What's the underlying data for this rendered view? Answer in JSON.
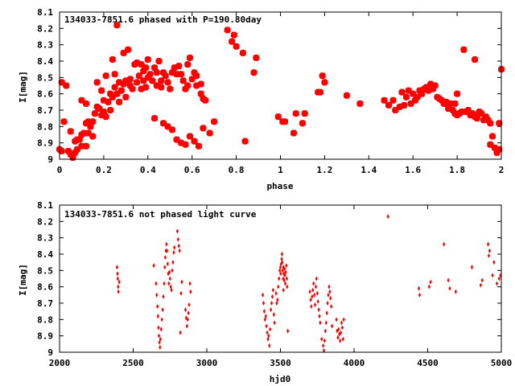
{
  "colors": {
    "points": "#ff0000",
    "axes": "#000000",
    "background": "#ffffff"
  },
  "chart_data": [
    {
      "type": "scatter",
      "title": "134033-7851.6 phased with P=190.80day",
      "xlabel": "phase",
      "ylabel": "I[mag]",
      "xlim": [
        0,
        2
      ],
      "ylim": [
        9,
        8.1
      ],
      "y_reversed": true,
      "xticks": [
        0,
        0.2,
        0.4,
        0.6,
        0.8,
        1,
        1.2,
        1.4,
        1.6,
        1.8,
        2
      ],
      "xtick_labels": [
        "0",
        "0.2",
        "0.4",
        "0.6",
        "0.8",
        "1",
        "1.2",
        "1.4",
        "1.6",
        "1.8",
        "2"
      ],
      "yticks": [
        8.1,
        8.2,
        8.3,
        8.4,
        8.5,
        8.6,
        8.7,
        8.8,
        8.9,
        9
      ],
      "ytick_labels": [
        "8.1",
        "8.2",
        "8.3",
        "8.4",
        "8.5",
        "8.6",
        "8.7",
        "8.8",
        "8.9",
        "9"
      ],
      "marker": "filled-square-large",
      "points": [
        [
          0.0,
          8.94
        ],
        [
          0.01,
          8.95
        ],
        [
          0.01,
          8.53
        ],
        [
          0.02,
          8.77
        ],
        [
          0.03,
          8.55
        ],
        [
          0.04,
          8.95
        ],
        [
          0.05,
          8.83
        ],
        [
          0.05,
          8.97
        ],
        [
          0.06,
          8.99
        ],
        [
          0.07,
          8.89
        ],
        [
          0.07,
          8.96
        ],
        [
          0.08,
          8.88
        ],
        [
          0.08,
          8.94
        ],
        [
          0.09,
          8.88
        ],
        [
          0.1,
          8.92
        ],
        [
          0.1,
          8.85
        ],
        [
          0.1,
          8.64
        ],
        [
          0.11,
          8.84
        ],
        [
          0.12,
          8.92
        ],
        [
          0.12,
          8.78
        ],
        [
          0.12,
          8.66
        ],
        [
          0.13,
          8.84
        ],
        [
          0.13,
          8.77
        ],
        [
          0.14,
          8.8
        ],
        [
          0.15,
          8.86
        ],
        [
          0.15,
          8.77
        ],
        [
          0.16,
          8.72
        ],
        [
          0.17,
          8.68
        ],
        [
          0.17,
          8.53
        ],
        [
          0.18,
          8.69
        ],
        [
          0.19,
          8.73
        ],
        [
          0.19,
          8.58
        ],
        [
          0.2,
          8.64
        ],
        [
          0.2,
          8.71
        ],
        [
          0.21,
          8.49
        ],
        [
          0.21,
          8.74
        ],
        [
          0.22,
          8.65
        ],
        [
          0.23,
          8.6
        ],
        [
          0.23,
          8.7
        ],
        [
          0.24,
          8.39
        ],
        [
          0.24,
          8.62
        ],
        [
          0.25,
          8.56
        ],
        [
          0.25,
          8.48
        ],
        [
          0.26,
          8.18
        ],
        [
          0.26,
          8.6
        ],
        [
          0.27,
          8.53
        ],
        [
          0.27,
          8.65
        ],
        [
          0.28,
          8.58
        ],
        [
          0.29,
          8.35
        ],
        [
          0.29,
          8.54
        ],
        [
          0.3,
          8.52
        ],
        [
          0.3,
          8.62
        ],
        [
          0.31,
          8.33
        ],
        [
          0.32,
          8.51
        ],
        [
          0.32,
          8.55
        ],
        [
          0.33,
          8.57
        ],
        [
          0.34,
          8.42
        ],
        [
          0.35,
          8.53
        ],
        [
          0.35,
          8.41
        ],
        [
          0.36,
          8.49
        ],
        [
          0.37,
          8.57
        ],
        [
          0.37,
          8.42
        ],
        [
          0.38,
          8.46
        ],
        [
          0.38,
          8.52
        ],
        [
          0.39,
          8.44
        ],
        [
          0.39,
          8.56
        ],
        [
          0.4,
          8.5
        ],
        [
          0.4,
          8.39
        ],
        [
          0.41,
          8.48
        ],
        [
          0.42,
          8.52
        ],
        [
          0.43,
          8.44
        ],
        [
          0.43,
          8.75
        ],
        [
          0.44,
          8.47
        ],
        [
          0.44,
          8.55
        ],
        [
          0.45,
          8.4
        ],
        [
          0.46,
          8.52
        ],
        [
          0.46,
          8.56
        ],
        [
          0.47,
          8.78
        ],
        [
          0.47,
          8.47
        ],
        [
          0.48,
          8.49
        ],
        [
          0.49,
          8.53
        ],
        [
          0.49,
          8.8
        ],
        [
          0.5,
          8.57
        ],
        [
          0.51,
          8.47
        ],
        [
          0.51,
          8.82
        ],
        [
          0.52,
          8.44
        ],
        [
          0.53,
          8.48
        ],
        [
          0.53,
          8.88
        ],
        [
          0.54,
          8.43
        ],
        [
          0.55,
          8.48
        ],
        [
          0.55,
          8.9
        ],
        [
          0.56,
          8.52
        ],
        [
          0.57,
          8.57
        ],
        [
          0.57,
          8.91
        ],
        [
          0.58,
          8.42
        ],
        [
          0.58,
          8.55
        ],
        [
          0.59,
          8.38
        ],
        [
          0.59,
          8.86
        ],
        [
          0.6,
          8.51
        ],
        [
          0.61,
          8.47
        ],
        [
          0.61,
          8.89
        ],
        [
          0.62,
          8.55
        ],
        [
          0.62,
          8.49
        ],
        [
          0.63,
          8.92
        ],
        [
          0.64,
          8.54
        ],
        [
          0.64,
          8.6
        ],
        [
          0.65,
          8.63
        ],
        [
          0.65,
          8.81
        ],
        [
          0.66,
          8.64
        ],
        [
          0.68,
          8.84
        ],
        [
          0.7,
          8.77
        ],
        [
          0.76,
          8.21
        ],
        [
          0.78,
          8.28
        ],
        [
          0.79,
          8.24
        ],
        [
          0.8,
          8.31
        ],
        [
          0.83,
          8.35
        ],
        [
          0.84,
          8.89
        ],
        [
          0.88,
          8.47
        ],
        [
          0.89,
          8.38
        ],
        [
          0.99,
          8.74
        ],
        [
          1.01,
          8.77
        ],
        [
          1.02,
          8.77
        ],
        [
          1.06,
          8.84
        ],
        [
          1.07,
          8.72
        ],
        [
          1.1,
          8.78
        ],
        [
          1.11,
          8.72
        ],
        [
          1.17,
          8.59
        ],
        [
          1.18,
          8.59
        ],
        [
          1.19,
          8.49
        ],
        [
          1.2,
          8.53
        ],
        [
          1.3,
          8.61
        ],
        [
          1.36,
          8.66
        ],
        [
          1.47,
          8.64
        ],
        [
          1.49,
          8.67
        ],
        [
          1.51,
          8.64
        ],
        [
          1.52,
          8.7
        ],
        [
          1.54,
          8.68
        ],
        [
          1.55,
          8.59
        ],
        [
          1.56,
          8.67
        ],
        [
          1.57,
          8.62
        ],
        [
          1.58,
          8.58
        ],
        [
          1.59,
          8.66
        ],
        [
          1.6,
          8.6
        ],
        [
          1.61,
          8.64
        ],
        [
          1.62,
          8.62
        ],
        [
          1.63,
          8.58
        ],
        [
          1.64,
          8.6
        ],
        [
          1.65,
          8.57
        ],
        [
          1.66,
          8.56
        ],
        [
          1.67,
          8.58
        ],
        [
          1.68,
          8.54
        ],
        [
          1.69,
          8.57
        ],
        [
          1.7,
          8.55
        ],
        [
          1.71,
          8.62
        ],
        [
          1.72,
          8.63
        ],
        [
          1.73,
          8.64
        ],
        [
          1.74,
          8.66
        ],
        [
          1.75,
          8.65
        ],
        [
          1.76,
          8.69
        ],
        [
          1.77,
          8.66
        ],
        [
          1.78,
          8.7
        ],
        [
          1.79,
          8.72
        ],
        [
          1.79,
          8.66
        ],
        [
          1.8,
          8.73
        ],
        [
          1.8,
          8.6
        ],
        [
          1.81,
          8.72
        ],
        [
          1.82,
          8.71
        ],
        [
          1.83,
          8.33
        ],
        [
          1.84,
          8.71
        ],
        [
          1.85,
          8.7
        ],
        [
          1.86,
          8.73
        ],
        [
          1.87,
          8.72
        ],
        [
          1.88,
          8.74
        ],
        [
          1.88,
          8.39
        ],
        [
          1.89,
          8.75
        ],
        [
          1.9,
          8.71
        ],
        [
          1.91,
          8.72
        ],
        [
          1.92,
          8.76
        ],
        [
          1.93,
          8.74
        ],
        [
          1.94,
          8.76
        ],
        [
          1.95,
          8.78
        ],
        [
          1.95,
          8.91
        ],
        [
          1.96,
          8.86
        ],
        [
          1.97,
          8.93
        ],
        [
          1.98,
          8.96
        ],
        [
          1.99,
          8.94
        ],
        [
          1.99,
          8.78
        ],
        [
          2.0,
          8.45
        ]
      ]
    },
    {
      "type": "scatter",
      "title": "134033-7851.6 not phased light curve",
      "xlabel": "hjd0",
      "ylabel": "I[mag]",
      "xlim": [
        2000,
        5000
      ],
      "ylim": [
        9,
        8.1
      ],
      "y_reversed": true,
      "xticks": [
        2000,
        2500,
        3000,
        3500,
        4000,
        4500,
        5000
      ],
      "xtick_labels": [
        "2000",
        "2500",
        "3000",
        "3500",
        "4000",
        "4500",
        "5000"
      ],
      "yticks": [
        8.1,
        8.2,
        8.3,
        8.4,
        8.5,
        8.6,
        8.7,
        8.8,
        8.9,
        9
      ],
      "ytick_labels": [
        "8.1",
        "8.2",
        "8.3",
        "8.4",
        "8.5",
        "8.6",
        "8.7",
        "8.8",
        "8.9",
        "9"
      ],
      "marker": "small-diamond",
      "points": [
        [
          2390,
          8.48
        ],
        [
          2393,
          8.52
        ],
        [
          2395,
          8.55
        ],
        [
          2398,
          8.6
        ],
        [
          2400,
          8.63
        ],
        [
          2405,
          8.57
        ],
        [
          2640,
          8.47
        ],
        [
          2655,
          8.58
        ],
        [
          2660,
          8.65
        ],
        [
          2665,
          8.72
        ],
        [
          2668,
          8.78
        ],
        [
          2672,
          8.85
        ],
        [
          2675,
          8.9
        ],
        [
          2678,
          8.94
        ],
        [
          2682,
          8.97
        ],
        [
          2685,
          8.92
        ],
        [
          2690,
          8.86
        ],
        [
          2695,
          8.8
        ],
        [
          2700,
          8.74
        ],
        [
          2705,
          8.66
        ],
        [
          2710,
          8.58
        ],
        [
          2715,
          8.48
        ],
        [
          2718,
          8.42
        ],
        [
          2722,
          8.38
        ],
        [
          2726,
          8.34
        ],
        [
          2730,
          8.38
        ],
        [
          2734,
          8.46
        ],
        [
          2738,
          8.52
        ],
        [
          2742,
          8.58
        ],
        [
          2746,
          8.51
        ],
        [
          2750,
          8.55
        ],
        [
          2755,
          8.6
        ],
        [
          2760,
          8.62
        ],
        [
          2765,
          8.5
        ],
        [
          2770,
          8.45
        ],
        [
          2775,
          8.39
        ],
        [
          2780,
          8.36
        ],
        [
          2800,
          8.26
        ],
        [
          2805,
          8.31
        ],
        [
          2810,
          8.35
        ],
        [
          2815,
          8.38
        ],
        [
          2820,
          8.88
        ],
        [
          2825,
          8.64
        ],
        [
          2830,
          8.57
        ],
        [
          2855,
          8.74
        ],
        [
          2860,
          8.79
        ],
        [
          2865,
          8.84
        ],
        [
          2870,
          8.8
        ],
        [
          2875,
          8.76
        ],
        [
          2880,
          8.71
        ],
        [
          2885,
          8.58
        ],
        [
          2890,
          8.63
        ],
        [
          3380,
          8.65
        ],
        [
          3385,
          8.7
        ],
        [
          3390,
          8.75
        ],
        [
          3395,
          8.8
        ],
        [
          3400,
          8.78
        ],
        [
          3405,
          8.84
        ],
        [
          3410,
          8.88
        ],
        [
          3415,
          8.92
        ],
        [
          3420,
          8.9
        ],
        [
          3425,
          8.96
        ],
        [
          3430,
          8.86
        ],
        [
          3435,
          8.74
        ],
        [
          3440,
          8.7
        ],
        [
          3445,
          8.66
        ],
        [
          3450,
          8.62
        ],
        [
          3455,
          8.77
        ],
        [
          3460,
          8.82
        ],
        [
          3470,
          8.64
        ],
        [
          3475,
          8.7
        ],
        [
          3480,
          8.68
        ],
        [
          3485,
          8.6
        ],
        [
          3490,
          8.55
        ],
        [
          3495,
          8.5
        ],
        [
          3500,
          8.48
        ],
        [
          3502,
          8.52
        ],
        [
          3505,
          8.46
        ],
        [
          3508,
          8.43
        ],
        [
          3510,
          8.4
        ],
        [
          3512,
          8.45
        ],
        [
          3515,
          8.5
        ],
        [
          3518,
          8.55
        ],
        [
          3520,
          8.48
        ],
        [
          3522,
          8.52
        ],
        [
          3525,
          8.56
        ],
        [
          3528,
          8.49
        ],
        [
          3530,
          8.53
        ],
        [
          3533,
          8.58
        ],
        [
          3536,
          8.51
        ],
        [
          3540,
          8.47
        ],
        [
          3543,
          8.55
        ],
        [
          3546,
          8.6
        ],
        [
          3550,
          8.87
        ],
        [
          3520,
          8.62
        ],
        [
          3700,
          8.63
        ],
        [
          3705,
          8.68
        ],
        [
          3710,
          8.72
        ],
        [
          3715,
          8.66
        ],
        [
          3720,
          8.62
        ],
        [
          3725,
          8.58
        ],
        [
          3730,
          8.65
        ],
        [
          3735,
          8.71
        ],
        [
          3740,
          8.6
        ],
        [
          3745,
          8.55
        ],
        [
          3750,
          8.64
        ],
        [
          3755,
          8.69
        ],
        [
          3760,
          8.74
        ],
        [
          3765,
          8.78
        ],
        [
          3770,
          8.82
        ],
        [
          3780,
          8.92
        ],
        [
          3790,
          8.96
        ],
        [
          3795,
          8.99
        ],
        [
          3800,
          8.93
        ],
        [
          3805,
          8.87
        ],
        [
          3810,
          8.82
        ],
        [
          3815,
          8.76
        ],
        [
          3820,
          8.7
        ],
        [
          3825,
          8.65
        ],
        [
          3830,
          8.6
        ],
        [
          3835,
          8.63
        ],
        [
          3840,
          8.67
        ],
        [
          3845,
          8.72
        ],
        [
          3850,
          8.84
        ],
        [
          3880,
          8.8
        ],
        [
          3885,
          8.87
        ],
        [
          3890,
          8.91
        ],
        [
          3895,
          8.86
        ],
        [
          3900,
          8.89
        ],
        [
          3905,
          8.93
        ],
        [
          3910,
          8.88
        ],
        [
          3915,
          8.82
        ],
        [
          3920,
          8.85
        ],
        [
          3925,
          8.92
        ],
        [
          3930,
          8.8
        ],
        [
          4230,
          8.17
        ],
        [
          4440,
          8.61
        ],
        [
          4445,
          8.65
        ],
        [
          4510,
          8.6
        ],
        [
          4520,
          8.57
        ],
        [
          4610,
          8.34
        ],
        [
          4640,
          8.56
        ],
        [
          4650,
          8.61
        ],
        [
          4690,
          8.63
        ],
        [
          4800,
          8.48
        ],
        [
          4860,
          8.59
        ],
        [
          4870,
          8.56
        ],
        [
          4910,
          8.34
        ],
        [
          4915,
          8.41
        ],
        [
          4920,
          8.38
        ],
        [
          4940,
          8.53
        ],
        [
          4950,
          8.45
        ],
        [
          4970,
          8.58
        ],
        [
          4985,
          8.55
        ],
        [
          4995,
          8.53
        ]
      ]
    }
  ]
}
